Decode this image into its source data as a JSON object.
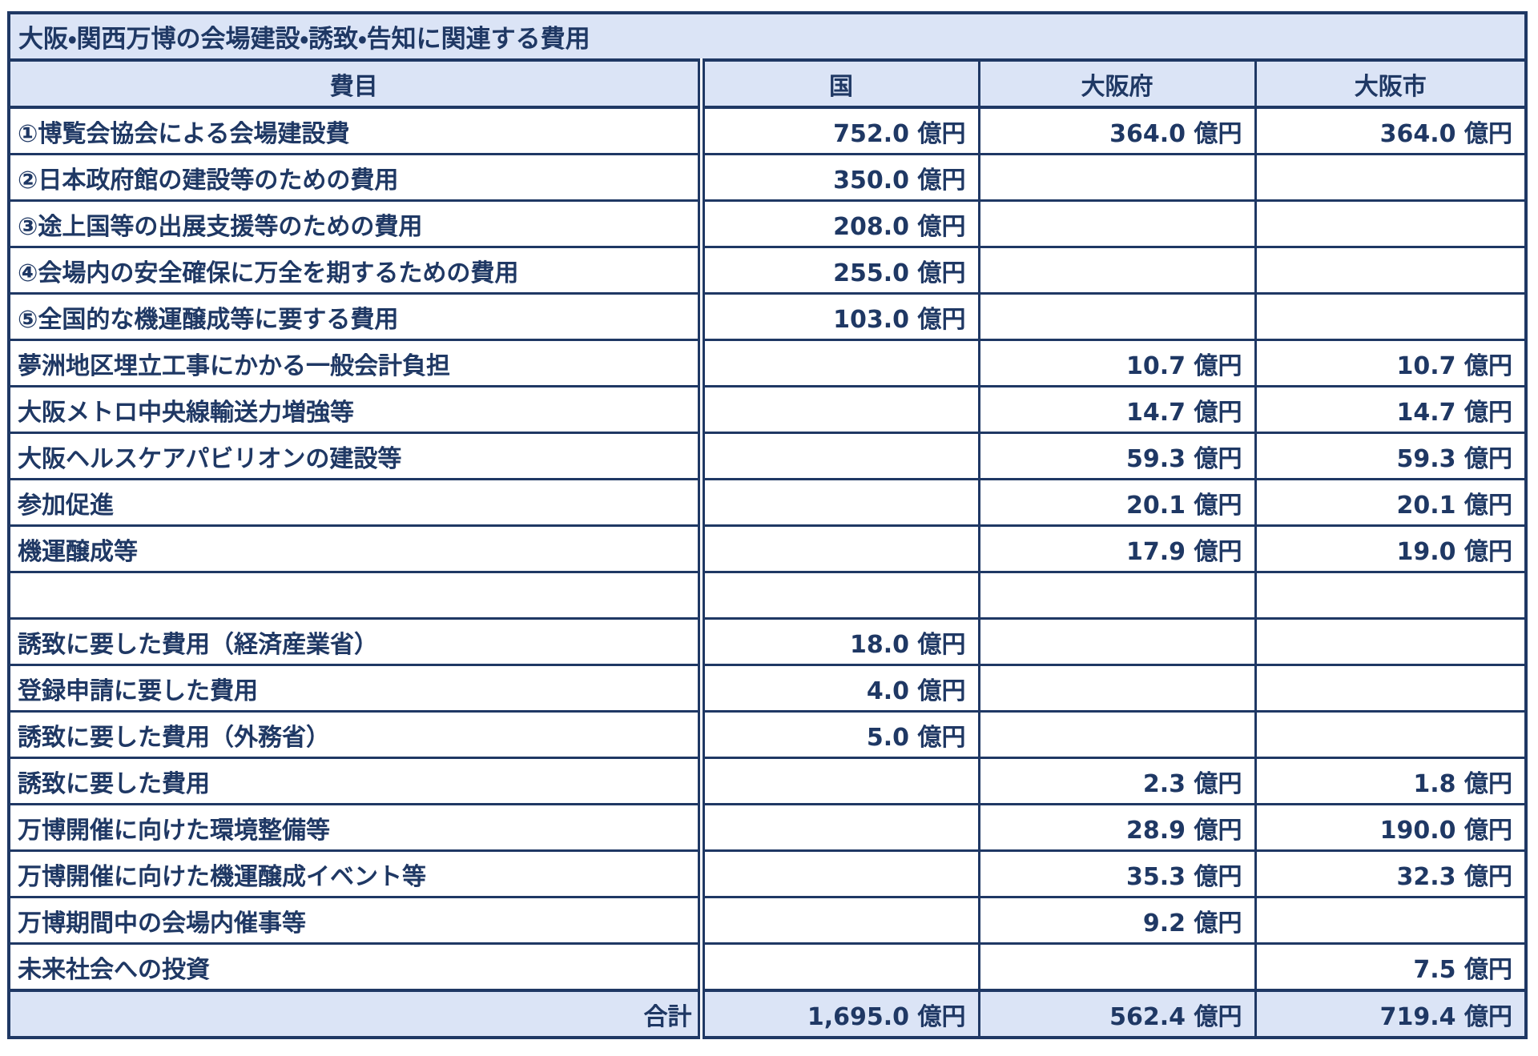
{
  "title": "大阪・関西万博の会場建設・誘致・告知に関連する費用",
  "columns": [
    "費目",
    "国",
    "大阪府",
    "大阪市"
  ],
  "rows": [
    {
      "item": "①博覧会協会による会場建設費",
      "values": [
        "752.0 億円",
        "364.0 億円",
        "364.0 億円"
      ]
    },
    {
      "item": "②日本政府館の建設等のための費用",
      "values": [
        "350.0 億円",
        "",
        ""
      ]
    },
    {
      "item": "③途上国等の出展支援等のための費用",
      "values": [
        "208.0 億円",
        "",
        ""
      ]
    },
    {
      "item": "④会場内の安全確保に万全を期するための費用",
      "values": [
        "255.0 億円",
        "",
        ""
      ]
    },
    {
      "item": "⑤全国的な機運醸成等に要する費用",
      "values": [
        "103.0 億円",
        "",
        ""
      ]
    },
    {
      "item": "夢洲地区埋立工事にかかる一般会計負担",
      "values": [
        "",
        "10.7 億円",
        "10.7 億円"
      ]
    },
    {
      "item": "大阪メトロ中央線輸送力増強等",
      "values": [
        "",
        "14.7 億円",
        "14.7 億円"
      ]
    },
    {
      "item": "大阪ヘルスケアパビリオンの建設等",
      "values": [
        "",
        "59.3 億円",
        "59.3 億円"
      ]
    },
    {
      "item": "参加促進",
      "values": [
        "",
        "20.1 億円",
        "20.1 億円"
      ]
    },
    {
      "item": "機運醸成等",
      "values": [
        "",
        "17.9 億円",
        "19.0 億円"
      ]
    },
    {
      "item": "",
      "values": [
        "",
        "",
        ""
      ]
    },
    {
      "item": "誘致に要した費用（経済産業省）",
      "values": [
        "18.0 億円",
        "",
        ""
      ]
    },
    {
      "item": "登録申請に要した費用",
      "values": [
        "4.0 億円",
        "",
        ""
      ]
    },
    {
      "item": "誘致に要した費用（外務省）",
      "values": [
        "5.0 億円",
        "",
        ""
      ]
    },
    {
      "item": "誘致に要した費用",
      "values": [
        "",
        "2.3 億円",
        "1.8 億円"
      ]
    },
    {
      "item": "万博開催に向けた環境整備等",
      "values": [
        "",
        "28.9 億円",
        "190.0 億円"
      ]
    },
    {
      "item": "万博開催に向けた機運醸成イベント等",
      "values": [
        "",
        "35.3 億円",
        "32.3 億円"
      ]
    },
    {
      "item": "万博期間中の会場内催事等",
      "values": [
        "",
        "9.2 億円",
        ""
      ]
    },
    {
      "item": "未来社会への投資",
      "values": [
        "",
        "",
        "7.5 億円"
      ]
    }
  ],
  "total": {
    "label": "合計",
    "values": [
      "1,695.0 億円",
      "562.4 億円",
      "719.4 億円"
    ]
  },
  "unit": "億円",
  "colors": {
    "text": "#1f3864",
    "border": "#1f3864",
    "band_bg": "#dbe4f6",
    "cell_bg": "#ffffff"
  }
}
